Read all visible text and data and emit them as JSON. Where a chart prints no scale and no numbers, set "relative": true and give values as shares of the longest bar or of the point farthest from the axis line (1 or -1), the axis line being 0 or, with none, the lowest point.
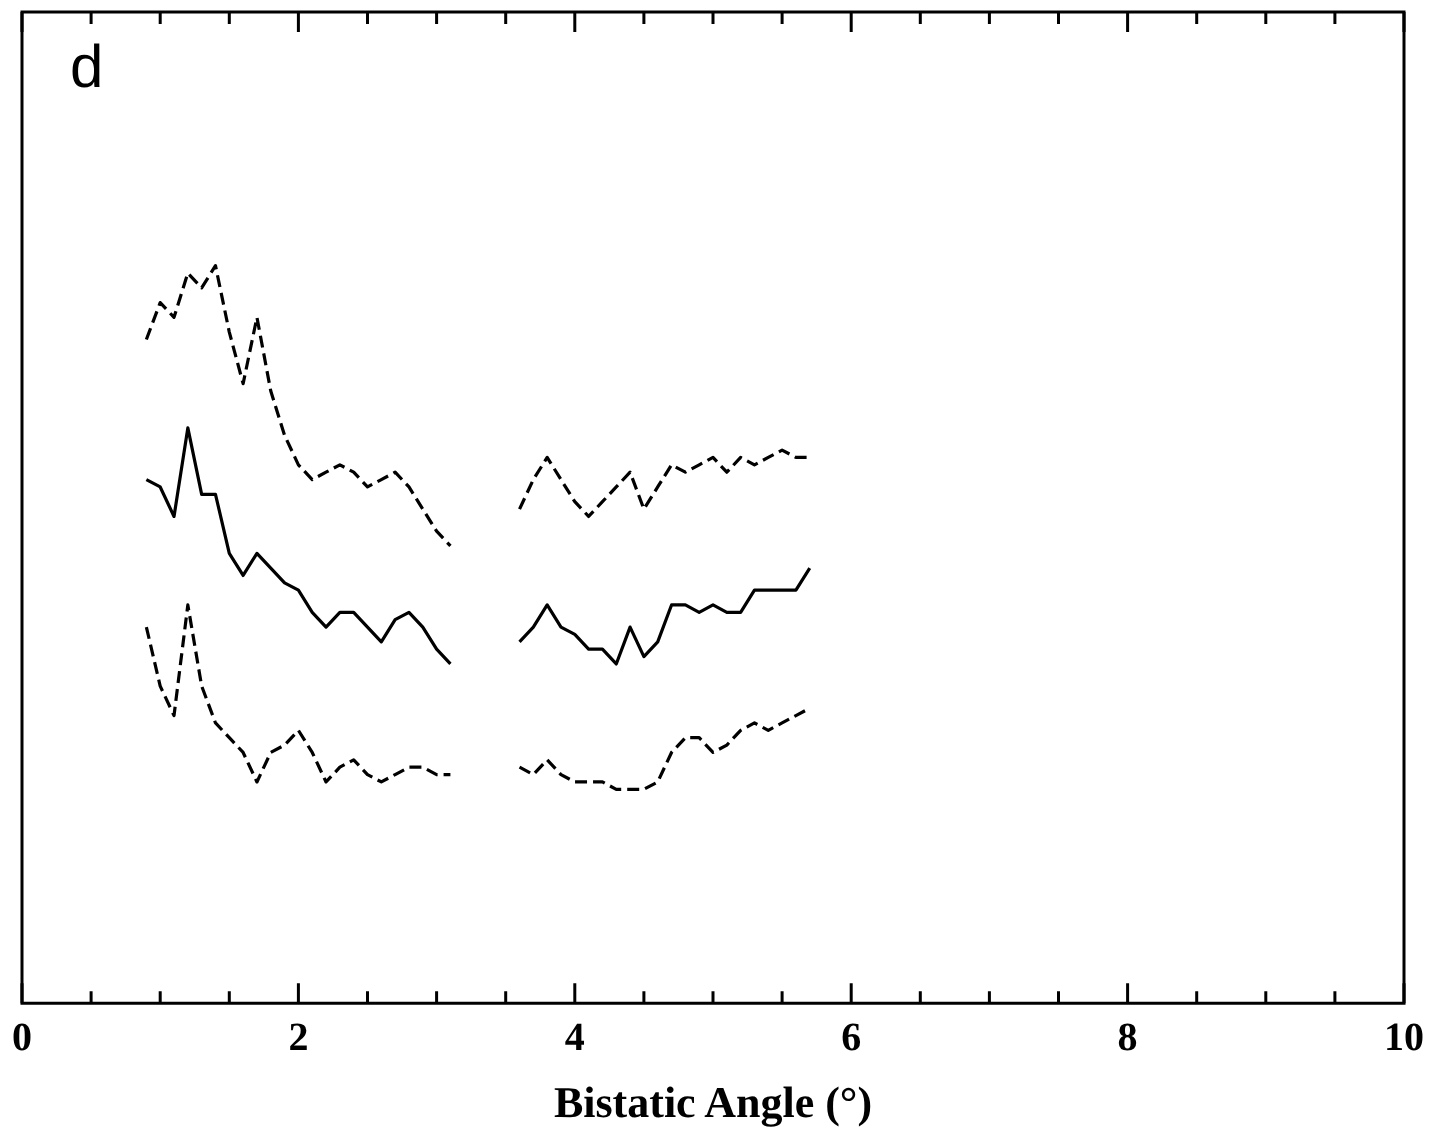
{
  "chart_data": {
    "type": "line",
    "xlabel": "Bistatic Angle (°)",
    "relative": true,
    "annotations": [
      "d"
    ],
    "marker": "none",
    "grid": false,
    "legend": false,
    "x": [
      0.9,
      1.0,
      1.1,
      1.2,
      1.3,
      1.4,
      1.5,
      1.6,
      1.7,
      1.8,
      1.9,
      2.0,
      2.1,
      2.2,
      2.3,
      2.4,
      2.5,
      2.6,
      2.7,
      2.8,
      2.9,
      3.0,
      3.1,
      3.2,
      3.3,
      3.4,
      3.5,
      3.6,
      3.7,
      3.8,
      3.9,
      4.0,
      4.1,
      4.2,
      4.3,
      4.4,
      4.5,
      4.6,
      4.7,
      4.8,
      4.9,
      5.0,
      5.1,
      5.2,
      5.3,
      5.4,
      5.5,
      5.6,
      5.7
    ],
    "xlim": [
      0,
      10
    ],
    "xticks": [
      0,
      {
        "value": 0.5,
        "label": null
      },
      {
        "value": 1,
        "label": null
      },
      {
        "value": 1.5,
        "label": null
      },
      2,
      {
        "value": 2.5,
        "label": null
      },
      {
        "value": 3,
        "label": null
      },
      {
        "value": 3.5,
        "label": null
      },
      4,
      {
        "value": 4.5,
        "label": null
      },
      {
        "value": 5,
        "label": null
      },
      {
        "value": 5.5,
        "label": null
      },
      6,
      {
        "value": 6.5,
        "label": null
      },
      {
        "value": 7,
        "label": null
      },
      {
        "value": 7.5,
        "label": null
      },
      8,
      {
        "value": 8.5,
        "label": null
      },
      {
        "value": 9,
        "label": null
      },
      {
        "value": 9.5,
        "label": null
      },
      10
    ],
    "tick_labels": "x",
    "series": [
      {
        "color": "#000000",
        "line_style": "dashed",
        "values": [
          0.9,
          0.95,
          0.93,
          0.99,
          0.97,
          1,
          0.91,
          0.84,
          0.93,
          0.83,
          0.77,
          0.73,
          0.71,
          0.72,
          0.73,
          0.72,
          0.7,
          0.71,
          0.72,
          0.7,
          0.67,
          0.64,
          0.62,
          null,
          null,
          null,
          null,
          0.67,
          0.71,
          0.74,
          0.71,
          0.68,
          0.66,
          0.68,
          0.7,
          0.72,
          0.67,
          0.7,
          0.73,
          0.72,
          0.73,
          0.74,
          0.72,
          0.74,
          0.73,
          0.74,
          0.75,
          0.74,
          0.74
        ]
      },
      {
        "color": "#000000",
        "line_style": "solid",
        "values": [
          0.71,
          0.7,
          0.66,
          0.78,
          0.69,
          0.69,
          0.61,
          0.58,
          0.61,
          0.59,
          0.57,
          0.56,
          0.53,
          0.51,
          0.53,
          0.53,
          0.51,
          0.49,
          0.52,
          0.53,
          0.51,
          0.48,
          0.46,
          null,
          null,
          null,
          null,
          0.49,
          0.51,
          0.54,
          0.51,
          0.5,
          0.48,
          0.48,
          0.46,
          0.51,
          0.47,
          0.49,
          0.54,
          0.54,
          0.53,
          0.54,
          0.53,
          0.53,
          0.56,
          0.56,
          0.56,
          0.56,
          0.59
        ]
      },
      {
        "color": "#000000",
        "line_style": "dashed",
        "values": [
          0.51,
          0.43,
          0.39,
          0.54,
          0.43,
          0.38,
          0.36,
          0.34,
          0.3,
          0.34,
          0.35,
          0.37,
          0.34,
          0.3,
          0.32,
          0.33,
          0.31,
          0.3,
          0.31,
          0.32,
          0.32,
          0.31,
          0.31,
          null,
          null,
          null,
          null,
          0.32,
          0.31,
          0.33,
          0.31,
          0.3,
          0.3,
          0.3,
          0.29,
          0.29,
          0.29,
          0.3,
          0.34,
          0.36,
          0.36,
          0.34,
          0.35,
          0.37,
          0.38,
          0.37,
          0.38,
          0.39,
          0.4
        ]
      }
    ]
  }
}
